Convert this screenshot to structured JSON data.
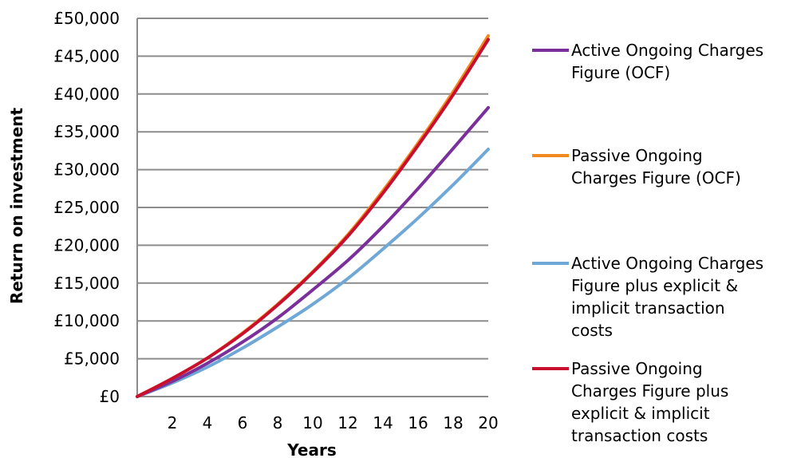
{
  "chart_data": {
    "type": "line",
    "title": "",
    "xlabel": "Years",
    "ylabel": "Return on investment",
    "xlim": [
      0,
      20
    ],
    "ylim": [
      0,
      50000
    ],
    "x_ticks": [
      2,
      4,
      6,
      8,
      10,
      12,
      14,
      16,
      18,
      20
    ],
    "x_tick_labels": [
      "2",
      "4",
      "6",
      "8",
      "10",
      "12",
      "14",
      "16",
      "18",
      "20"
    ],
    "y_ticks": [
      0,
      5000,
      10000,
      15000,
      20000,
      25000,
      30000,
      35000,
      40000,
      45000,
      50000
    ],
    "y_tick_labels": [
      "£0",
      "£5,000",
      "£10,000",
      "£15,000",
      "£20,000",
      "£25,000",
      "£30,000",
      "£35,000",
      "£40,000",
      "£45,000",
      "£50,000"
    ],
    "grid": "horizontal",
    "legend_position": "right",
    "x": [
      0,
      2,
      4,
      6,
      8,
      10,
      12,
      14,
      16,
      18,
      20
    ],
    "series": [
      {
        "name": "Active Ongoing Charges Figure (OCF)",
        "color": "#7b2f9b",
        "values": [
          0,
          2000,
          4400,
          7200,
          10400,
          14100,
          18000,
          22500,
          27500,
          32800,
          38200
        ]
      },
      {
        "name": "Passive Ongoing Charges Figure (OCF)",
        "color": "#f08a1e",
        "values": [
          0,
          2400,
          5100,
          8400,
          12200,
          16500,
          21400,
          27200,
          33500,
          40300,
          47700
        ]
      },
      {
        "name": "Active Ongoing Charges Figure plus explicit & implicit transaction costs",
        "color": "#6fa8d6",
        "values": [
          0,
          1800,
          3900,
          6400,
          9200,
          12200,
          15600,
          19500,
          23600,
          28000,
          32700
        ]
      },
      {
        "name": "Passive Ongoing Charges Figure plus explicit & implicit transaction costs",
        "color": "#c8102e",
        "values": [
          0,
          2400,
          5100,
          8300,
          12100,
          16400,
          21200,
          26900,
          33200,
          39900,
          47200
        ]
      }
    ],
    "legend": [
      {
        "series": 0,
        "lines": [
          "Active Ongoing Charges",
          "Figure (OCF)"
        ]
      },
      {
        "series": 1,
        "lines": [
          "Passive Ongoing",
          "Charges Figure (OCF)"
        ]
      },
      {
        "series": 2,
        "lines": [
          "Active Ongoing Charges",
          "Figure plus explicit &",
          "implicit transaction",
          "costs"
        ]
      },
      {
        "series": 3,
        "lines": [
          "Passive Ongoing",
          "Charges Figure plus",
          "explicit & implicit",
          "transaction costs"
        ]
      }
    ]
  }
}
